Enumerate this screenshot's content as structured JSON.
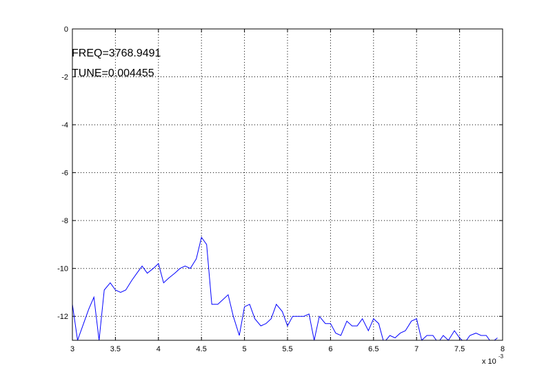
{
  "chart_data": {
    "type": "line",
    "title": "",
    "xlabel": "",
    "ylabel": "",
    "xlim": [
      3,
      8
    ],
    "ylim": [
      -13,
      0
    ],
    "x_multiplier": {
      "base": "x 10",
      "exponent": "-3"
    },
    "xticks": [
      "3",
      "3.5",
      "4",
      "4.5",
      "5",
      "5.5",
      "6",
      "6.5",
      "7",
      "7.5",
      "8"
    ],
    "yticks": [
      "0",
      "-2",
      "-4",
      "-6",
      "-8",
      "-10",
      "-12"
    ],
    "grid": true,
    "line_color": "#0000ff",
    "annotations": [
      {
        "text": "FREQ=3768.9491"
      },
      {
        "text": "TUNE=0.004455"
      }
    ],
    "series": [
      {
        "x": [
          3.0,
          3.06,
          3.12,
          3.19,
          3.25,
          3.31,
          3.37,
          3.44,
          3.5,
          3.56,
          3.62,
          3.69,
          3.75,
          3.81,
          3.87,
          3.94,
          4.0,
          4.06,
          4.12,
          4.19,
          4.25,
          4.31,
          4.37,
          4.44,
          4.5,
          4.56,
          4.62,
          4.69,
          4.75,
          4.81,
          4.87,
          4.94,
          5.0,
          5.06,
          5.12,
          5.19,
          5.25,
          5.31,
          5.37,
          5.44,
          5.5,
          5.56,
          5.62,
          5.69,
          5.75,
          5.81,
          5.87,
          5.94,
          6.0,
          6.06,
          6.12,
          6.19,
          6.25,
          6.31,
          6.37,
          6.44,
          6.5,
          6.56,
          6.62,
          6.69,
          6.75,
          6.81,
          6.87,
          6.94,
          7.0,
          7.06,
          7.12,
          7.19,
          7.25,
          7.31,
          7.37,
          7.44,
          7.5,
          7.56,
          7.62,
          7.69,
          7.75,
          7.81,
          7.87,
          7.94
        ],
        "y": [
          -11.5,
          -13.0,
          -12.4,
          -11.7,
          -11.2,
          -13.0,
          -10.9,
          -10.6,
          -10.9,
          -11.0,
          -10.9,
          -10.5,
          -10.2,
          -9.9,
          -10.2,
          -10.0,
          -9.8,
          -10.6,
          -10.4,
          -10.2,
          -10.0,
          -9.9,
          -10.0,
          -9.6,
          -8.7,
          -9.0,
          -11.5,
          -11.5,
          -11.3,
          -11.1,
          -12.0,
          -12.8,
          -11.6,
          -11.5,
          -12.1,
          -12.4,
          -12.3,
          -12.1,
          -11.5,
          -11.8,
          -12.4,
          -12.0,
          -12.0,
          -12.0,
          -11.9,
          -13.0,
          -12.0,
          -12.3,
          -12.3,
          -12.7,
          -12.8,
          -12.2,
          -12.4,
          -12.4,
          -12.1,
          -12.6,
          -12.1,
          -12.3,
          -13.1,
          -12.8,
          -12.9,
          -12.7,
          -12.6,
          -12.2,
          -12.1,
          -13.0,
          -12.8,
          -12.8,
          -13.1,
          -12.8,
          -13.0,
          -12.6,
          -12.9,
          -13.1,
          -12.8,
          -12.7,
          -12.8,
          -12.8,
          -13.1,
          -12.9
        ]
      }
    ]
  }
}
